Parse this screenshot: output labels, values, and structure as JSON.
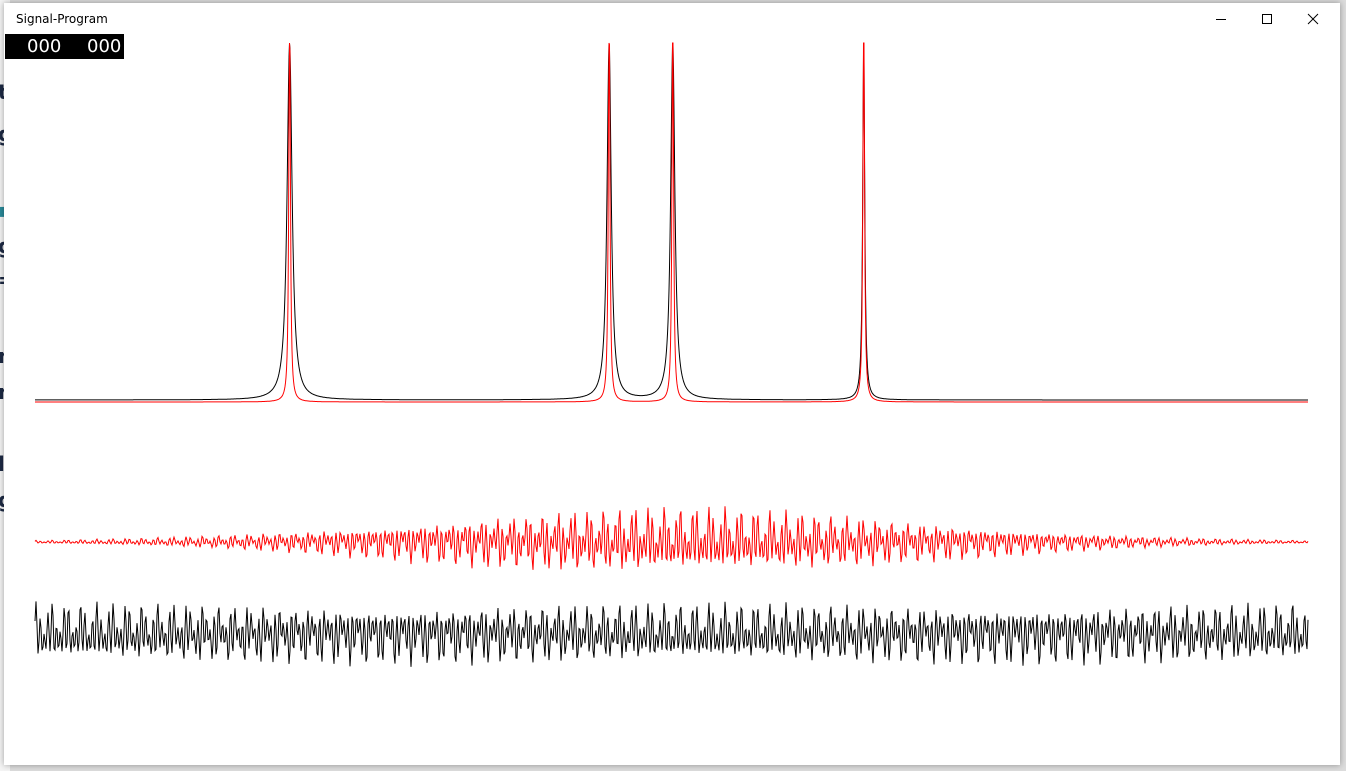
{
  "window": {
    "title": "Signal-Program"
  },
  "titlebar_buttons": {
    "minimize_icon": "minimize-icon",
    "maximize_icon": "maximize-icon",
    "close_icon": "close-icon"
  },
  "counter": {
    "left": "000",
    "right": "000"
  },
  "background_window_glyphs": [
    "t",
    "g",
    "",
    "g",
    "=",
    "n",
    "n",
    "l",
    "g"
  ],
  "colors": {
    "spectrum_line": "#000000",
    "spectrum_peaks": "#ff0000",
    "windowed_signal": "#ff0000",
    "raw_signal": "#000000"
  },
  "chart_data": [
    {
      "type": "line",
      "series": [
        {
          "color": "#000000",
          "peaks": [
            0.2,
            0.451,
            0.501,
            0.651
          ],
          "style": "lorentzian-wide"
        },
        {
          "color": "#ff0000",
          "peaks": [
            0.2,
            0.451,
            0.501,
            0.651
          ],
          "style": "lorentzian-narrow"
        }
      ]
    },
    {
      "type": "line",
      "series": [
        {
          "color": "#ff0000",
          "envelope": "gaussian"
        }
      ]
    },
    {
      "type": "line",
      "series": [
        {
          "color": "#000000",
          "envelope": "constant"
        }
      ]
    }
  ]
}
